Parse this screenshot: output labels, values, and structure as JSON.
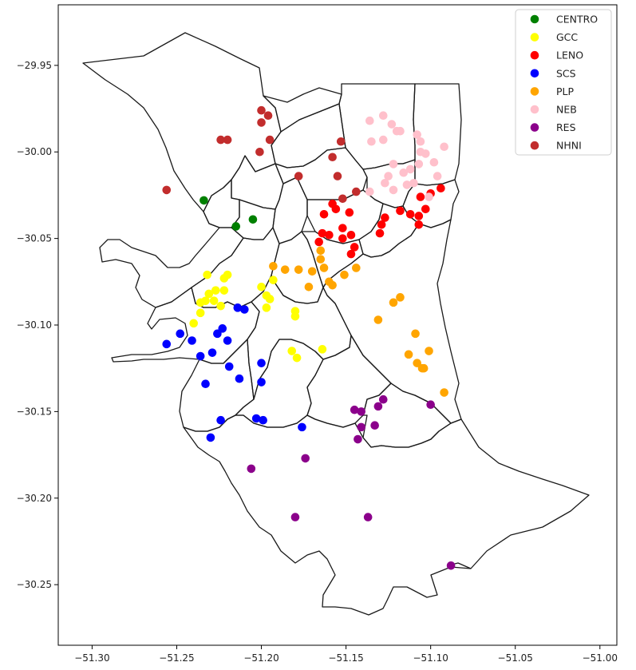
{
  "chart_data": {
    "type": "scatter",
    "title": "",
    "xlabel": "",
    "ylabel": "",
    "xlim": [
      -51.32,
      -50.99
    ],
    "ylim": [
      -30.285,
      -29.915
    ],
    "xticks": [
      -51.3,
      -51.25,
      -51.2,
      -51.15,
      -51.1,
      -51.05,
      -51.0
    ],
    "xtick_labels": [
      "−51.30",
      "−51.25",
      "−51.20",
      "−51.15",
      "−51.10",
      "−51.05",
      "−51.00"
    ],
    "yticks": [
      -29.95,
      -30.0,
      -30.05,
      -30.1,
      -30.15,
      -30.2,
      -30.25
    ],
    "ytick_labels": [
      "−29.95",
      "−30.00",
      "−30.05",
      "−30.10",
      "−30.15",
      "−30.20",
      "−30.25"
    ],
    "grid": false,
    "legend_position": "top-right",
    "series": [
      {
        "name": "CENTRO",
        "color": "#008000",
        "points": [
          [
            -51.234,
            -30.028
          ],
          [
            -51.205,
            -30.039
          ],
          [
            -51.215,
            -30.043
          ]
        ]
      },
      {
        "name": "GCC",
        "color": "#ffff00",
        "points": [
          [
            -51.232,
            -30.071
          ],
          [
            -51.222,
            -30.073
          ],
          [
            -51.22,
            -30.071
          ],
          [
            -51.227,
            -30.08
          ],
          [
            -51.222,
            -30.08
          ],
          [
            -51.231,
            -30.082
          ],
          [
            -51.233,
            -30.086
          ],
          [
            -51.236,
            -30.087
          ],
          [
            -51.228,
            -30.086
          ],
          [
            -51.224,
            -30.089
          ],
          [
            -51.236,
            -30.093
          ],
          [
            -51.24,
            -30.099
          ],
          [
            -51.2,
            -30.078
          ],
          [
            -51.193,
            -30.074
          ],
          [
            -51.197,
            -30.083
          ],
          [
            -51.195,
            -30.085
          ],
          [
            -51.197,
            -30.09
          ],
          [
            -51.18,
            -30.092
          ],
          [
            -51.18,
            -30.095
          ],
          [
            -51.182,
            -30.115
          ],
          [
            -51.179,
            -30.119
          ],
          [
            -51.164,
            -30.114
          ]
        ]
      },
      {
        "name": "LENO",
        "color": "#ff0000",
        "points": [
          [
            -51.158,
            -30.03
          ],
          [
            -51.156,
            -30.033
          ],
          [
            -51.148,
            -30.035
          ],
          [
            -51.163,
            -30.036
          ],
          [
            -51.164,
            -30.047
          ],
          [
            -51.16,
            -30.048
          ],
          [
            -51.166,
            -30.052
          ],
          [
            -51.152,
            -30.044
          ],
          [
            -51.152,
            -30.05
          ],
          [
            -51.147,
            -30.048
          ],
          [
            -51.145,
            -30.055
          ],
          [
            -51.147,
            -30.059
          ],
          [
            -51.127,
            -30.038
          ],
          [
            -51.129,
            -30.042
          ],
          [
            -51.13,
            -30.047
          ],
          [
            -51.118,
            -30.034
          ],
          [
            -51.112,
            -30.036
          ],
          [
            -51.107,
            -30.037
          ],
          [
            -51.107,
            -30.042
          ],
          [
            -51.103,
            -30.033
          ],
          [
            -51.1,
            -30.024
          ],
          [
            -51.094,
            -30.021
          ],
          [
            -51.106,
            -30.026
          ]
        ]
      },
      {
        "name": "SCS",
        "color": "#0000ff",
        "points": [
          [
            -51.214,
            -30.09
          ],
          [
            -51.21,
            -30.091
          ],
          [
            -51.223,
            -30.102
          ],
          [
            -51.226,
            -30.105
          ],
          [
            -51.248,
            -30.105
          ],
          [
            -51.241,
            -30.109
          ],
          [
            -51.22,
            -30.109
          ],
          [
            -51.256,
            -30.111
          ],
          [
            -51.229,
            -30.116
          ],
          [
            -51.236,
            -30.118
          ],
          [
            -51.219,
            -30.124
          ],
          [
            -51.213,
            -30.131
          ],
          [
            -51.233,
            -30.134
          ],
          [
            -51.2,
            -30.122
          ],
          [
            -51.2,
            -30.133
          ],
          [
            -51.224,
            -30.155
          ],
          [
            -51.203,
            -30.154
          ],
          [
            -51.199,
            -30.155
          ],
          [
            -51.176,
            -30.159
          ],
          [
            -51.23,
            -30.165
          ]
        ]
      },
      {
        "name": "PLP",
        "color": "#ffa500",
        "points": [
          [
            -51.193,
            -30.066
          ],
          [
            -51.186,
            -30.068
          ],
          [
            -51.178,
            -30.068
          ],
          [
            -51.17,
            -30.069
          ],
          [
            -51.172,
            -30.078
          ],
          [
            -51.165,
            -30.062
          ],
          [
            -51.165,
            -30.057
          ],
          [
            -51.163,
            -30.067
          ],
          [
            -51.16,
            -30.075
          ],
          [
            -51.158,
            -30.077
          ],
          [
            -51.151,
            -30.071
          ],
          [
            -51.144,
            -30.067
          ],
          [
            -51.131,
            -30.097
          ],
          [
            -51.122,
            -30.087
          ],
          [
            -51.118,
            -30.084
          ],
          [
            -51.109,
            -30.105
          ],
          [
            -51.113,
            -30.117
          ],
          [
            -51.108,
            -30.122
          ],
          [
            -51.105,
            -30.125
          ],
          [
            -51.104,
            -30.125
          ],
          [
            -51.101,
            -30.115
          ],
          [
            -51.092,
            -30.139
          ]
        ]
      },
      {
        "name": "NEB",
        "color": "#ffc0cb",
        "points": [
          [
            -51.136,
            -29.982
          ],
          [
            -51.128,
            -29.979
          ],
          [
            -51.123,
            -29.984
          ],
          [
            -51.118,
            -29.988
          ],
          [
            -51.12,
            -29.988
          ],
          [
            -51.108,
            -29.99
          ],
          [
            -51.106,
            -29.994
          ],
          [
            -51.106,
            -30.0
          ],
          [
            -51.103,
            -30.001
          ],
          [
            -51.098,
            -30.006
          ],
          [
            -51.092,
            -29.997
          ],
          [
            -51.135,
            -29.994
          ],
          [
            -51.128,
            -29.993
          ],
          [
            -51.122,
            -30.007
          ],
          [
            -51.116,
            -30.012
          ],
          [
            -51.112,
            -30.01
          ],
          [
            -51.107,
            -30.007
          ],
          [
            -51.096,
            -30.014
          ],
          [
            -51.125,
            -30.014
          ],
          [
            -51.127,
            -30.018
          ],
          [
            -51.122,
            -30.022
          ],
          [
            -51.136,
            -30.023
          ],
          [
            -51.114,
            -30.019
          ],
          [
            -51.11,
            -30.018
          ],
          [
            -51.101,
            -30.026
          ]
        ]
      },
      {
        "name": "RES",
        "color": "#8b008b",
        "points": [
          [
            -51.145,
            -30.149
          ],
          [
            -51.141,
            -30.15
          ],
          [
            -51.128,
            -30.143
          ],
          [
            -51.131,
            -30.147
          ],
          [
            -51.133,
            -30.158
          ],
          [
            -51.141,
            -30.159
          ],
          [
            -51.143,
            -30.166
          ],
          [
            -51.1,
            -30.146
          ],
          [
            -51.206,
            -30.183
          ],
          [
            -51.174,
            -30.177
          ],
          [
            -51.18,
            -30.211
          ],
          [
            -51.137,
            -30.211
          ],
          [
            -51.088,
            -30.239
          ]
        ]
      },
      {
        "name": "NHNI",
        "color": "#c22d2d",
        "points": [
          [
            -51.2,
            -29.976
          ],
          [
            -51.196,
            -29.979
          ],
          [
            -51.2,
            -29.983
          ],
          [
            -51.195,
            -29.993
          ],
          [
            -51.224,
            -29.993
          ],
          [
            -51.22,
            -29.993
          ],
          [
            -51.201,
            -30.0
          ],
          [
            -51.178,
            -30.014
          ],
          [
            -51.158,
            -30.003
          ],
          [
            -51.155,
            -30.014
          ],
          [
            -51.153,
            -29.994
          ],
          [
            -51.256,
            -30.022
          ],
          [
            -51.144,
            -30.023
          ],
          [
            -51.152,
            -30.027
          ]
        ]
      }
    ]
  },
  "map": {
    "outline_color": "#1a1a1a"
  }
}
